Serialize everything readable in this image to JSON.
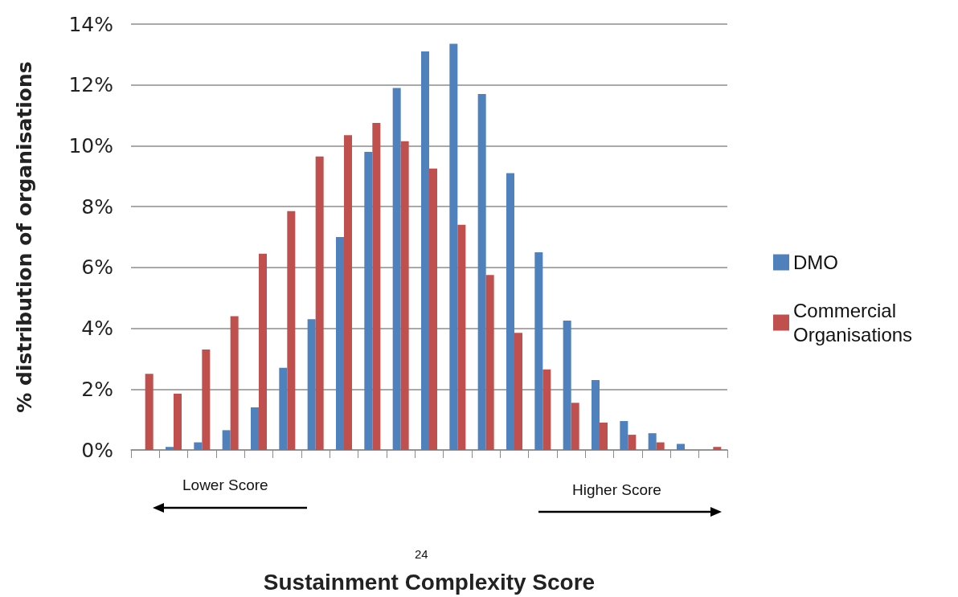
{
  "chart_data": {
    "type": "bar",
    "ylabel": "% distribution of organisations",
    "xlabel": "Sustainment Complexity Score",
    "categories": [
      null,
      null,
      null,
      null,
      null,
      null,
      null,
      null,
      null,
      null,
      null,
      null,
      null,
      null,
      null,
      null,
      null,
      null,
      null,
      null,
      null
    ],
    "series": [
      {
        "name": "DMO",
        "color": "#4f81bd",
        "values": [
          0,
          0.1,
          0.25,
          0.65,
          1.4,
          2.7,
          4.3,
          7.0,
          9.8,
          11.9,
          13.1,
          13.35,
          11.7,
          9.1,
          6.5,
          4.25,
          2.3,
          0.95,
          0.55,
          0.2,
          0
        ]
      },
      {
        "name": "Commercial Organisations",
        "color": "#c0504d",
        "values": [
          2.5,
          1.85,
          3.3,
          4.4,
          6.45,
          7.85,
          9.65,
          10.35,
          10.75,
          10.15,
          9.25,
          7.4,
          5.75,
          3.85,
          2.65,
          1.55,
          0.9,
          0.5,
          0.25,
          0,
          0.1
        ]
      }
    ],
    "ylim": [
      0,
      14
    ],
    "yticks": [
      {
        "value": 0,
        "label": "0%"
      },
      {
        "value": 2,
        "label": "2%"
      },
      {
        "value": 4,
        "label": "4%"
      },
      {
        "value": 6,
        "label": "6%"
      },
      {
        "value": 8,
        "label": "8%"
      },
      {
        "value": 10,
        "label": "10%"
      },
      {
        "value": 12,
        "label": "12%"
      },
      {
        "value": 14,
        "label": "14%"
      }
    ],
    "grid": "y",
    "legend": "right",
    "tick_labels": "y",
    "annotations": [
      "Lower Score",
      "Higher Score",
      "24"
    ]
  }
}
